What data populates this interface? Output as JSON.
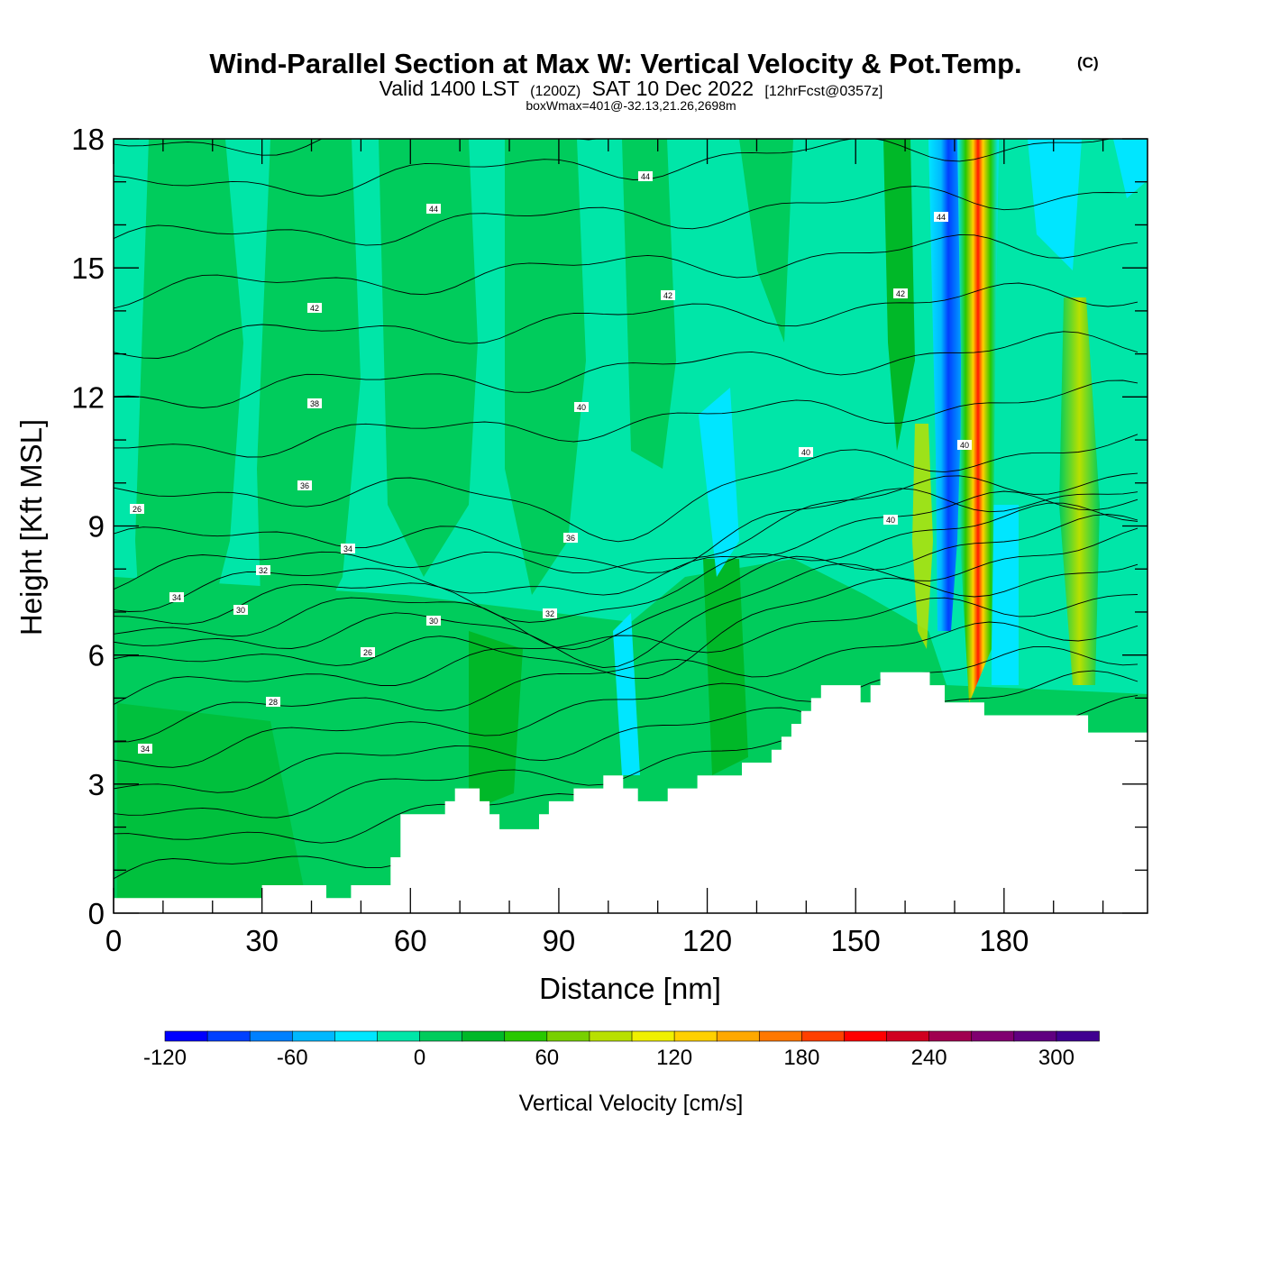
{
  "chart_data": {
    "type": "heatmap",
    "title": "Wind-Parallel Section at Max W: Vertical Velocity & Pot.Temp.",
    "title_mark": "(C)",
    "subtitle_valid": "Valid 1400 LST",
    "subtitle_zulu": "(1200Z)",
    "subtitle_date": "SAT 10 Dec 2022",
    "subtitle_fcst": "[12hrFcst@0357z]",
    "subtitle_box": "boxWmax=401@-32.13,21.26,2698m",
    "xlabel": "Distance [nm]",
    "ylabel": "Height [Kft MSL]",
    "xlim": [
      0,
      209
    ],
    "ylim": [
      0,
      18
    ],
    "x_ticks": [
      0,
      30,
      60,
      90,
      120,
      150,
      180
    ],
    "y_ticks": [
      0,
      3,
      6,
      9,
      12,
      15,
      18
    ],
    "colorbar": {
      "label": "Vertical Velocity [cm/s]",
      "min": -120,
      "max": 320,
      "step": 20,
      "tick_values": [
        -120,
        -60,
        0,
        60,
        120,
        180,
        240,
        300
      ],
      "colors": [
        "#0000ff",
        "#0040ff",
        "#0080ff",
        "#00b8ff",
        "#00e6ff",
        "#00e6a8",
        "#00cc5c",
        "#00b828",
        "#28c800",
        "#78d000",
        "#b8e000",
        "#f0f000",
        "#ffd000",
        "#ffa800",
        "#ff7800",
        "#ff4000",
        "#ff0000",
        "#d00020",
        "#a00050",
        "#800070",
        "#600080",
        "#400090"
      ]
    },
    "terrain_kft": [
      [
        0,
        0.35
      ],
      [
        30,
        0.35
      ],
      [
        30,
        0.65
      ],
      [
        43,
        0.65
      ],
      [
        43,
        0.35
      ],
      [
        48,
        0.35
      ],
      [
        48,
        0.65
      ],
      [
        56,
        0.65
      ],
      [
        56,
        1.3
      ],
      [
        58,
        1.3
      ],
      [
        58,
        2.3
      ],
      [
        67,
        2.3
      ],
      [
        67,
        2.6
      ],
      [
        69,
        2.6
      ],
      [
        69,
        2.9
      ],
      [
        74,
        2.9
      ],
      [
        74,
        2.6
      ],
      [
        76,
        2.6
      ],
      [
        76,
        2.3
      ],
      [
        78,
        2.3
      ],
      [
        78,
        1.95
      ],
      [
        86,
        1.95
      ],
      [
        86,
        2.3
      ],
      [
        88,
        2.3
      ],
      [
        88,
        2.6
      ],
      [
        93,
        2.6
      ],
      [
        93,
        2.9
      ],
      [
        99,
        2.9
      ],
      [
        99,
        3.2
      ],
      [
        103,
        3.2
      ],
      [
        103,
        2.9
      ],
      [
        106,
        2.9
      ],
      [
        106,
        2.6
      ],
      [
        112,
        2.6
      ],
      [
        112,
        2.9
      ],
      [
        118,
        2.9
      ],
      [
        118,
        3.2
      ],
      [
        127,
        3.2
      ],
      [
        127,
        3.5
      ],
      [
        133,
        3.5
      ],
      [
        133,
        3.8
      ],
      [
        135,
        3.8
      ],
      [
        135,
        4.1
      ],
      [
        137,
        4.1
      ],
      [
        137,
        4.4
      ],
      [
        139,
        4.4
      ],
      [
        139,
        4.7
      ],
      [
        141,
        4.7
      ],
      [
        141,
        5.0
      ],
      [
        143,
        5.0
      ],
      [
        143,
        5.3
      ],
      [
        151,
        5.3
      ],
      [
        151,
        4.9
      ],
      [
        153,
        4.9
      ],
      [
        153,
        5.3
      ],
      [
        155,
        5.3
      ],
      [
        155,
        5.6
      ],
      [
        165,
        5.6
      ],
      [
        165,
        5.3
      ],
      [
        168,
        5.3
      ],
      [
        168,
        4.9
      ],
      [
        176,
        4.9
      ],
      [
        176,
        4.6
      ],
      [
        197,
        4.6
      ],
      [
        197,
        4.2
      ],
      [
        209,
        4.2
      ]
    ],
    "theta_isentropes_C": [
      24,
      25,
      26,
      27,
      28,
      29,
      30,
      31,
      32,
      33,
      34,
      35,
      36,
      37,
      38,
      39,
      40,
      41,
      42,
      43,
      44,
      45
    ],
    "theta_labels": [
      "26",
      "34",
      "32",
      "30",
      "34",
      "26",
      "28",
      "30",
      "32",
      "34",
      "36",
      "36",
      "38",
      "40",
      "40",
      "40",
      "40",
      "42",
      "42",
      "42",
      "44",
      "44",
      "44"
    ],
    "updraft_max_cms": 401
  }
}
